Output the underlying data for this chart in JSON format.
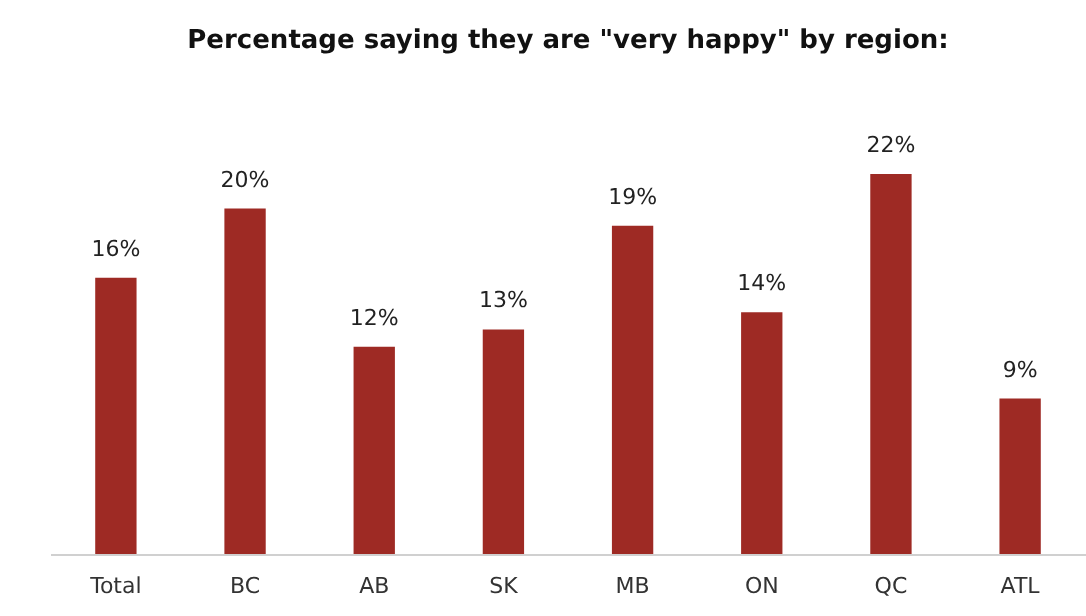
{
  "chart_data": {
    "type": "bar",
    "title": "Percentage saying they are \"very happy\" by region:",
    "categories": [
      "Total",
      "BC",
      "AB",
      "SK",
      "MB",
      "ON",
      "QC",
      "ATL"
    ],
    "values": [
      16,
      20,
      12,
      13,
      19,
      14,
      22,
      9
    ],
    "value_labels": [
      "16%",
      "20%",
      "12%",
      "13%",
      "19%",
      "14%",
      "22%",
      "9%"
    ],
    "color": "#9e2a24"
  }
}
